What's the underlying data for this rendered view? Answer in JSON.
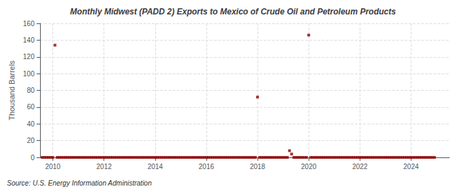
{
  "chart_data": {
    "type": "scatter",
    "title": "Monthly Midwest (PADD 2) Exports to Mexico of Crude Oil and Petroleum Products",
    "ylabel": "Thousand Barrels",
    "annotations": [
      "Source: U.S. Energy Information Administration"
    ],
    "color": "#8b0000",
    "marker": "square",
    "grid": true,
    "xlim": [
      2009.5,
      2025.5
    ],
    "xticks": [
      2010,
      2012,
      2014,
      2016,
      2018,
      2020,
      2022,
      2024
    ],
    "ylim": [
      0,
      160
    ],
    "yticks": [
      0,
      20,
      40,
      60,
      80,
      100,
      120,
      140,
      160
    ],
    "x": [
      2009.583,
      2009.667,
      2009.75,
      2009.833,
      2009.917,
      2010.0,
      2010.083,
      2010.167,
      2010.25,
      2010.333,
      2010.417,
      2010.5,
      2010.583,
      2010.667,
      2010.75,
      2010.833,
      2010.917,
      2011.0,
      2011.083,
      2011.167,
      2011.25,
      2011.333,
      2011.417,
      2011.5,
      2011.583,
      2011.667,
      2011.75,
      2011.833,
      2011.917,
      2012.0,
      2012.083,
      2012.167,
      2012.25,
      2012.333,
      2012.417,
      2012.5,
      2012.583,
      2012.667,
      2012.75,
      2012.833,
      2012.917,
      2013.0,
      2013.083,
      2013.167,
      2013.25,
      2013.333,
      2013.417,
      2013.5,
      2013.583,
      2013.667,
      2013.75,
      2013.833,
      2013.917,
      2014.0,
      2014.083,
      2014.167,
      2014.25,
      2014.333,
      2014.417,
      2014.5,
      2014.583,
      2014.667,
      2014.75,
      2014.833,
      2014.917,
      2015.0,
      2015.083,
      2015.167,
      2015.25,
      2015.333,
      2015.417,
      2015.5,
      2015.583,
      2015.667,
      2015.75,
      2015.833,
      2015.917,
      2016.0,
      2016.083,
      2016.167,
      2016.25,
      2016.333,
      2016.417,
      2016.5,
      2016.583,
      2016.667,
      2016.75,
      2016.833,
      2016.917,
      2017.0,
      2017.083,
      2017.167,
      2017.25,
      2017.333,
      2017.417,
      2017.5,
      2017.583,
      2017.667,
      2017.75,
      2017.833,
      2017.917,
      2018.0,
      2018.083,
      2018.167,
      2018.25,
      2018.333,
      2018.417,
      2018.5,
      2018.583,
      2018.667,
      2018.75,
      2018.833,
      2018.917,
      2019.0,
      2019.083,
      2019.167,
      2019.25,
      2019.333,
      2019.417,
      2019.5,
      2019.583,
      2019.667,
      2019.75,
      2019.833,
      2019.917,
      2020.0,
      2020.083,
      2020.167,
      2020.25,
      2020.333,
      2020.417,
      2020.5,
      2020.583,
      2020.667,
      2020.75,
      2020.833,
      2020.917,
      2021.0,
      2021.083,
      2021.167,
      2021.25,
      2021.333,
      2021.417,
      2021.5,
      2021.583,
      2021.667,
      2021.75,
      2021.833,
      2021.917,
      2022.0,
      2022.083,
      2022.167,
      2022.25,
      2022.333,
      2022.417,
      2022.5,
      2022.583,
      2022.667,
      2022.75,
      2022.833,
      2022.917,
      2023.0,
      2023.083,
      2023.167,
      2023.25,
      2023.333,
      2023.417,
      2023.5,
      2023.583,
      2023.667,
      2023.75,
      2023.833,
      2023.917,
      2024.0,
      2024.083,
      2024.167,
      2024.25,
      2024.333,
      2024.417,
      2024.5,
      2024.583,
      2024.667,
      2024.75,
      2024.833,
      2024.917
    ],
    "values": [
      0,
      0,
      0,
      0,
      0,
      0,
      134,
      0,
      0,
      0,
      0,
      0,
      0,
      0,
      0,
      0,
      0,
      0,
      0,
      0,
      0,
      0,
      0,
      0,
      0,
      0,
      0,
      0,
      0,
      0,
      0,
      0,
      0,
      0,
      0,
      0,
      0,
      0,
      0,
      0,
      0,
      0,
      0,
      0,
      0,
      0,
      0,
      0,
      0,
      0,
      0,
      0,
      0,
      0,
      0,
      0,
      0,
      0,
      0,
      0,
      0,
      0,
      0,
      0,
      0,
      0,
      0,
      0,
      0,
      0,
      0,
      0,
      0,
      0,
      0,
      0,
      0,
      0,
      0,
      0,
      0,
      0,
      0,
      0,
      0,
      0,
      0,
      0,
      0,
      0,
      0,
      0,
      0,
      0,
      0,
      0,
      0,
      0,
      0,
      0,
      0,
      72,
      0,
      0,
      0,
      0,
      0,
      0,
      0,
      0,
      0,
      0,
      0,
      0,
      0,
      0,
      8,
      4,
      0,
      0,
      0,
      0,
      0,
      0,
      0,
      146,
      0,
      0,
      0,
      0,
      0,
      0,
      0,
      0,
      0,
      0,
      0,
      0,
      0,
      0,
      0,
      0,
      0,
      0,
      0,
      0,
      0,
      0,
      0,
      0,
      0,
      0,
      0,
      0,
      0,
      0,
      0,
      0,
      0,
      0,
      0,
      0,
      0,
      0,
      0,
      0,
      0,
      0,
      0,
      0,
      0,
      0,
      0,
      0,
      0,
      0,
      0,
      0,
      0,
      0,
      0,
      0,
      0,
      0,
      0
    ]
  }
}
